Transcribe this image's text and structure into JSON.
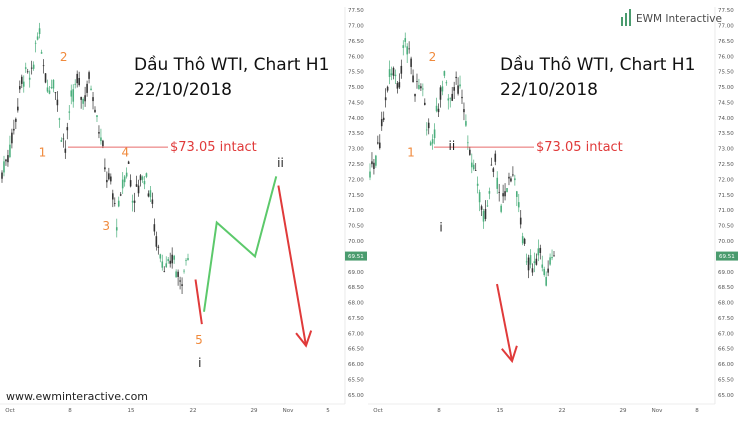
{
  "watermark": "www.ewminteractive.com",
  "brand": {
    "name": "EWM Interactive"
  },
  "colors": {
    "candle_up": "#4caf7d",
    "candle_down": "#333333",
    "orange_label": "#f08a3c",
    "red": "#e03a3a",
    "green": "#5cc96b",
    "price_tag": "#4a9b6e"
  },
  "chart_data": [
    {
      "type": "candlestick",
      "title": "Dầu Thô WTI, Chart H1",
      "subtitle": "22/10/2018",
      "y_ticks": [
        "77.50",
        "77.00",
        "76.50",
        "76.00",
        "75.50",
        "75.00",
        "74.50",
        "74.00",
        "73.50",
        "73.00",
        "72.50",
        "72.00",
        "71.50",
        "71.00",
        "70.50",
        "70.00",
        "69.50",
        "69.00",
        "68.50",
        "68.00",
        "67.50",
        "67.00",
        "66.50",
        "66.00",
        "65.50",
        "65.00"
      ],
      "ylim": [
        64.9,
        77.6
      ],
      "x_ticks": [
        "Oct",
        "8",
        "15",
        "22",
        "29",
        "Nov",
        "5"
      ],
      "price_tag": "69.51",
      "level_line": {
        "value": 73.05,
        "label": "$73.05 intact"
      },
      "wave_labels": [
        {
          "text": "2",
          "color": "orange",
          "x": 15.0,
          "y": 75.85
        },
        {
          "text": "1",
          "color": "orange",
          "x": 10.0,
          "y": 72.75
        },
        {
          "text": "4",
          "color": "orange",
          "x": 29.5,
          "y": 72.75
        },
        {
          "text": "3",
          "color": "orange",
          "x": 25.0,
          "y": 70.35
        },
        {
          "text": "5",
          "color": "orange",
          "x": 46.8,
          "y": 66.65
        },
        {
          "text": "i",
          "color": "black",
          "x": 47.0,
          "y": 65.9
        },
        {
          "text": "ii",
          "color": "black",
          "x": 66.0,
          "y": 72.4
        }
      ],
      "projections": [
        {
          "color": "red",
          "points": [
            [
              46.0,
              68.75
            ],
            [
              47.5,
              67.3
            ]
          ]
        },
        {
          "color": "green",
          "points": [
            [
              48.0,
              67.7
            ],
            [
              51.0,
              70.6
            ],
            [
              60.0,
              69.5
            ],
            [
              65.0,
              72.1
            ]
          ]
        },
        {
          "color": "red",
          "arrow": true,
          "points": [
            [
              65.5,
              71.8
            ],
            [
              72.0,
              66.6
            ]
          ]
        }
      ]
    },
    {
      "type": "candlestick",
      "title": "Dầu Thô WTI, Chart H1",
      "subtitle": "22/10/2018",
      "y_ticks": [
        "77.50",
        "77.00",
        "76.50",
        "76.00",
        "75.50",
        "75.00",
        "74.50",
        "74.00",
        "73.50",
        "73.00",
        "72.50",
        "72.00",
        "71.50",
        "71.00",
        "70.50",
        "70.00",
        "69.50",
        "69.00",
        "68.50",
        "68.00",
        "67.50",
        "67.00",
        "66.50",
        "66.00",
        "65.50",
        "65.00"
      ],
      "ylim": [
        64.9,
        77.6
      ],
      "x_ticks": [
        "Oct",
        "8",
        "15",
        "22",
        "29",
        "Nov",
        "8"
      ],
      "price_tag": "69.51",
      "level_line": {
        "value": 73.05,
        "label": "$73.05 intact"
      },
      "wave_labels": [
        {
          "text": "2",
          "color": "orange",
          "x": 15.0,
          "y": 75.85
        },
        {
          "text": "1",
          "color": "orange",
          "x": 10.0,
          "y": 72.75
        },
        {
          "text": "ii",
          "color": "black",
          "x": 19.5,
          "y": 72.95
        },
        {
          "text": "i",
          "color": "black",
          "x": 17.0,
          "y": 70.3
        }
      ],
      "projections": [
        {
          "color": "red",
          "arrow": true,
          "points": [
            [
              30.0,
              68.6
            ],
            [
              33.5,
              66.1
            ]
          ]
        }
      ]
    }
  ]
}
